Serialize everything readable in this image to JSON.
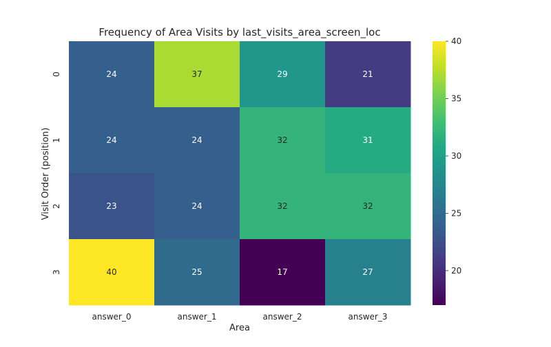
{
  "chart_data": {
    "type": "heatmap",
    "title": "Frequency of Area Visits by last_visits_area_screen_loc",
    "xlabel": "Area",
    "ylabel": "Visit Order (position)",
    "x_categories": [
      "answer_0",
      "answer_1",
      "answer_2",
      "answer_3"
    ],
    "y_categories": [
      "0",
      "1",
      "2",
      "3"
    ],
    "values": [
      [
        24,
        37,
        29,
        21
      ],
      [
        24,
        24,
        32,
        31
      ],
      [
        23,
        24,
        32,
        32
      ],
      [
        40,
        25,
        17,
        27
      ]
    ],
    "annotations": true,
    "colormap": "viridis",
    "color_range": [
      17,
      40
    ],
    "colorbar_ticks": [
      "20",
      "25",
      "30",
      "35",
      "40"
    ],
    "grid": false
  }
}
